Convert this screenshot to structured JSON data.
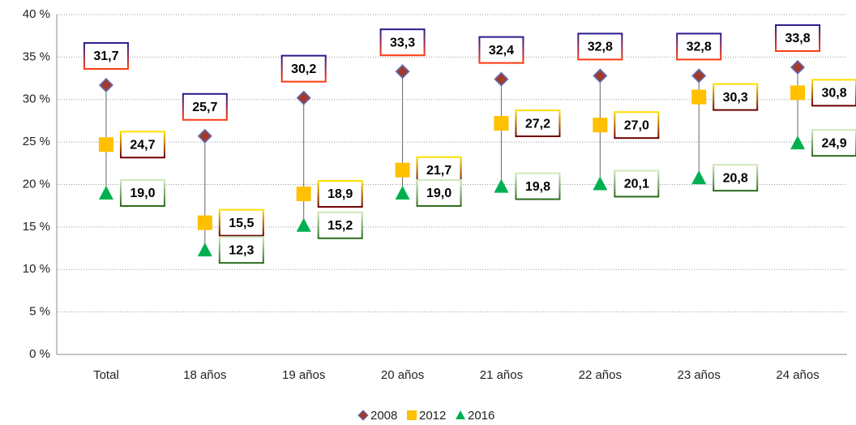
{
  "chart_data": {
    "type": "hilo-marker",
    "categories": [
      "Total",
      "18 años",
      "19 años",
      "20 años",
      "21 años",
      "22 años",
      "23 años",
      "24 años"
    ],
    "series": [
      {
        "name": "2008",
        "color": "#a33a30",
        "values": [
          31.7,
          25.7,
          30.2,
          33.3,
          32.4,
          32.8,
          32.8,
          33.8
        ],
        "value_labels": [
          "31,7",
          "25,7",
          "30,2",
          "33,3",
          "32,4",
          "32,8",
          "32,8",
          "33,8"
        ]
      },
      {
        "name": "2012",
        "color": "#ffc000",
        "values": [
          24.7,
          15.5,
          18.9,
          21.7,
          27.2,
          27.0,
          30.3,
          30.8
        ],
        "value_labels": [
          "24,7",
          "15,5",
          "18,9",
          "21,7",
          "27,2",
          "27,0",
          "30,3",
          "30,8"
        ]
      },
      {
        "name": "2016",
        "color": "#00b050",
        "values": [
          19.0,
          12.3,
          15.2,
          19.0,
          19.8,
          20.1,
          20.8,
          24.9
        ],
        "value_labels": [
          "19,0",
          "12,3",
          "15,2",
          "19,0",
          "19,8",
          "20,1",
          "20,8",
          "24,9"
        ]
      }
    ],
    "ylim": [
      0,
      40
    ],
    "yticks": [
      {
        "value": 0,
        "label": "0 %"
      },
      {
        "value": 5,
        "label": "5 %"
      },
      {
        "value": 10,
        "label": "10 %"
      },
      {
        "value": 15,
        "label": "15 %"
      },
      {
        "value": 20,
        "label": "20 %"
      },
      {
        "value": 25,
        "label": "25 %"
      },
      {
        "value": 30,
        "label": "30 %"
      },
      {
        "value": 35,
        "label": "35 %"
      },
      {
        "value": 40,
        "label": "40 %"
      }
    ],
    "grid": true,
    "legend": "bottom"
  }
}
